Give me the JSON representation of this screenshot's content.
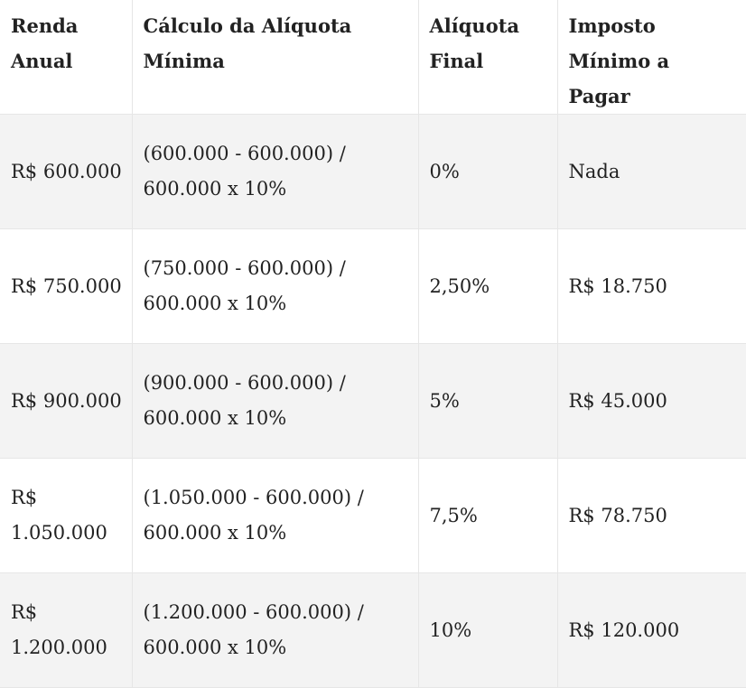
{
  "table": {
    "headers": [
      "Renda Anual",
      "Cálculo da Alíquota Mínima",
      "Alíquota Final",
      "Imposto Mínimo a Pagar"
    ],
    "rows": [
      [
        "R$ 600.000",
        "(600.000 - 600.000) / 600.000 x 10%",
        "0%",
        "Nada"
      ],
      [
        "R$ 750.000",
        "(750.000 - 600.000) / 600.000 x 10%",
        "2,50%",
        "R$ 18.750"
      ],
      [
        "R$ 900.000",
        "(900.000 - 600.000) / 600.000 x 10%",
        "5%",
        "R$ 45.000"
      ],
      [
        "R$ 1.050.000",
        "(1.050.000 - 600.000) / 600.000 x 10%",
        "7,5%",
        "R$ 78.750"
      ],
      [
        "R$ 1.200.000",
        "(1.200.000 - 600.000) / 600.000 x 10%",
        "10%",
        "R$ 120.000"
      ]
    ]
  }
}
